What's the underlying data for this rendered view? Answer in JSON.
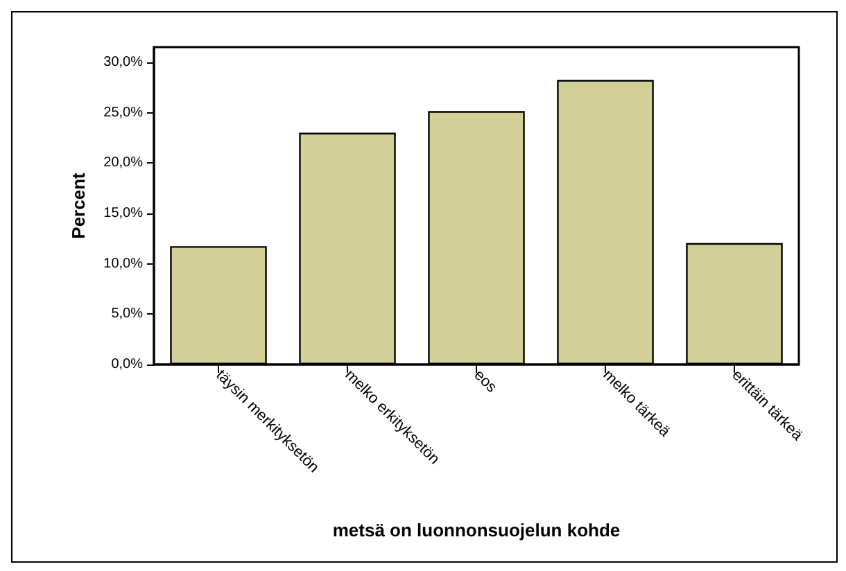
{
  "chart_data": {
    "type": "bar",
    "xlabel": "metsä on luonnonsuojelun kohde",
    "ylabel": "Percent",
    "categories": [
      "täysin merkityksetön",
      "melko erkityksetön",
      "eos",
      "melko tärkeä",
      "erittäin tärkeä"
    ],
    "values": [
      11.75,
      23.0,
      25.15,
      28.25,
      12.05
    ],
    "color": "#d3cf98",
    "ylim": [
      0,
      31.5
    ],
    "yticks": [
      {
        "value": 0,
        "label": "0,0%"
      },
      {
        "value": 5,
        "label": "5,0%"
      },
      {
        "value": 10,
        "label": "10,0%"
      },
      {
        "value": 15,
        "label": "15,0%"
      },
      {
        "value": 20,
        "label": "20,0%"
      },
      {
        "value": 25,
        "label": "25,0%"
      },
      {
        "value": 30,
        "label": "30,0%"
      }
    ],
    "grid": false
  }
}
